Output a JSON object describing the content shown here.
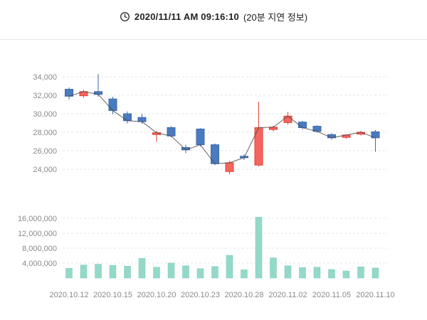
{
  "header": {
    "timestamp": "2020/11/11 AM 09:16:10",
    "delay_note": "(20분 지연 정보)"
  },
  "colors": {
    "up_border": "#e2403a",
    "up_fill": "#f4655c",
    "down_border": "#3d69ad",
    "down_fill": "#4a7abf",
    "volume_fill": "#93d9c8",
    "volume_border": "#7ccab7",
    "close_line": "#4a4a4a",
    "grid": "#e4e4e4",
    "axis_text": "#8a8a8a",
    "header_text": "#222222",
    "divider": "#e7e7e7"
  },
  "chart_data": [
    {
      "type": "candlestick",
      "title": "",
      "xlabel": "",
      "ylabel": "",
      "ylim": [
        23200,
        35800
      ],
      "grid": true,
      "legend": "none",
      "yticks": [
        34000,
        32000,
        30000,
        28000,
        26000,
        24000
      ],
      "ytick_labels": [
        "34,000",
        "32,000",
        "30,000",
        "28,000",
        "26,000",
        "24,000"
      ],
      "xtick_labels": [
        "2020.10.12",
        "2020.10.15",
        "2020.10.20",
        "2020.10.23",
        "2020.10.28",
        "2020.11.02",
        "2020.11.05",
        "2020.11.10"
      ],
      "candles": [
        {
          "date": "2020.10.12",
          "open": 32650,
          "high": 32850,
          "low": 31550,
          "close": 31900
        },
        {
          "date": "2020.10.13",
          "open": 31950,
          "high": 32600,
          "low": 31750,
          "close": 32400
        },
        {
          "date": "2020.10.14",
          "open": 32400,
          "high": 34300,
          "low": 31850,
          "close": 32100
        },
        {
          "date": "2020.10.15",
          "open": 31600,
          "high": 31850,
          "low": 29950,
          "close": 30350
        },
        {
          "date": "2020.10.16",
          "open": 30000,
          "high": 30250,
          "low": 28950,
          "close": 29250
        },
        {
          "date": "2020.10.19",
          "open": 29600,
          "high": 30000,
          "low": 28900,
          "close": 29150
        },
        {
          "date": "2020.10.20",
          "open": 27750,
          "high": 28150,
          "low": 26950,
          "close": 27950
        },
        {
          "date": "2020.10.21",
          "open": 28500,
          "high": 28650,
          "low": 27450,
          "close": 27600
        },
        {
          "date": "2020.10.22",
          "open": 26350,
          "high": 26650,
          "low": 25750,
          "close": 26100
        },
        {
          "date": "2020.10.23",
          "open": 28350,
          "high": 28450,
          "low": 26450,
          "close": 26650
        },
        {
          "date": "2020.10.26",
          "open": 26650,
          "high": 26800,
          "low": 24450,
          "close": 24600
        },
        {
          "date": "2020.10.27",
          "open": 23750,
          "high": 24900,
          "low": 23450,
          "close": 24700
        },
        {
          "date": "2020.10.28",
          "open": 25400,
          "high": 25600,
          "low": 25000,
          "close": 25250
        },
        {
          "date": "2020.10.29",
          "open": 24450,
          "high": 31300,
          "low": 24300,
          "close": 28500
        },
        {
          "date": "2020.10.30",
          "open": 28300,
          "high": 28700,
          "low": 28100,
          "close": 28550
        },
        {
          "date": "2020.11.02",
          "open": 29050,
          "high": 30200,
          "low": 28850,
          "close": 29750
        },
        {
          "date": "2020.11.03",
          "open": 29100,
          "high": 29250,
          "low": 28300,
          "close": 28500
        },
        {
          "date": "2020.11.04",
          "open": 28650,
          "high": 28750,
          "low": 27950,
          "close": 28100
        },
        {
          "date": "2020.11.05",
          "open": 27750,
          "high": 27900,
          "low": 27200,
          "close": 27400
        },
        {
          "date": "2020.11.06",
          "open": 27450,
          "high": 27800,
          "low": 27300,
          "close": 27700
        },
        {
          "date": "2020.11.09",
          "open": 27800,
          "high": 28150,
          "low": 27650,
          "close": 28000
        },
        {
          "date": "2020.11.10",
          "open": 28050,
          "high": 28250,
          "low": 25900,
          "close": 27400
        }
      ]
    },
    {
      "type": "bar",
      "title": "",
      "xlabel": "",
      "ylabel": "",
      "ylim": [
        0,
        18500000
      ],
      "grid": true,
      "legend": "none",
      "yticks": [
        16000000,
        12000000,
        8000000,
        4000000
      ],
      "ytick_labels": [
        "16,000,000",
        "12,000,000",
        "8,000,000",
        "4,000,000"
      ],
      "categories": [
        "2020.10.12",
        "2020.10.13",
        "2020.10.14",
        "2020.10.15",
        "2020.10.16",
        "2020.10.19",
        "2020.10.20",
        "2020.10.21",
        "2020.10.22",
        "2020.10.23",
        "2020.10.26",
        "2020.10.27",
        "2020.10.28",
        "2020.10.29",
        "2020.10.30",
        "2020.11.02",
        "2020.11.03",
        "2020.11.04",
        "2020.11.05",
        "2020.11.06",
        "2020.11.09",
        "2020.11.10"
      ],
      "values": [
        2600000,
        3500000,
        3700000,
        3400000,
        3200000,
        5300000,
        2900000,
        4000000,
        3300000,
        2500000,
        3100000,
        6100000,
        2200000,
        16300000,
        5400000,
        3300000,
        2800000,
        2900000,
        2300000,
        1900000,
        3000000,
        2700000
      ]
    }
  ]
}
